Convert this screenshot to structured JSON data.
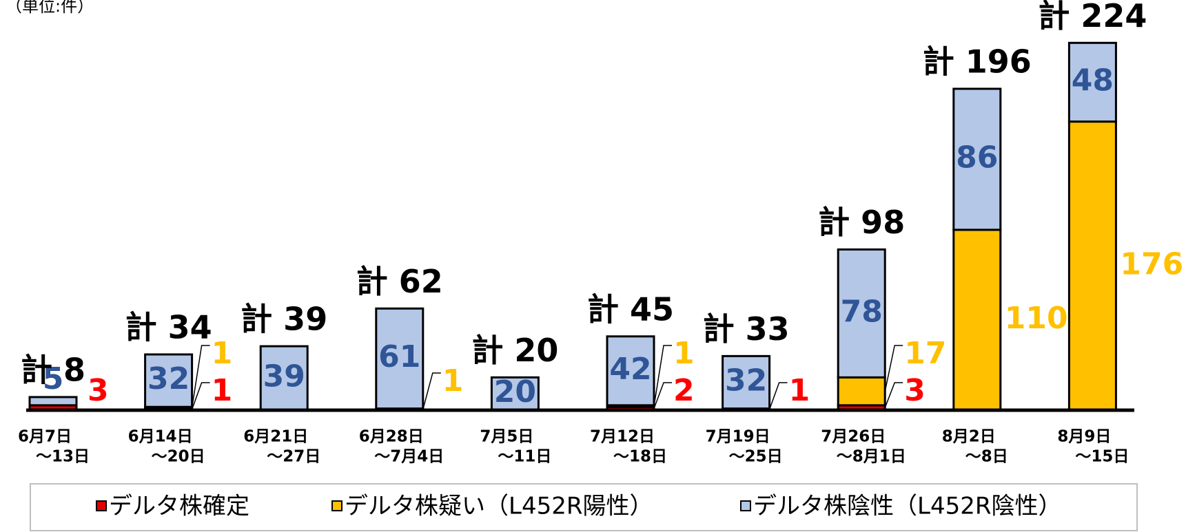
{
  "chart_data": {
    "type": "stacked_bar",
    "unit_label": "（単位:件）",
    "categories": [
      [
        "6月7日",
        "〜13日"
      ],
      [
        "6月14日",
        "〜20日"
      ],
      [
        "6月21日",
        "〜27日"
      ],
      [
        "6月28日",
        "〜7月4日"
      ],
      [
        "7月5日",
        "〜11日"
      ],
      [
        "7月12日",
        "〜18日"
      ],
      [
        "7月19日",
        "〜25日"
      ],
      [
        "7月26日",
        "〜8月1日"
      ],
      [
        "8月2日",
        "〜8日"
      ],
      [
        "8月9日",
        "〜15日"
      ]
    ],
    "series": [
      {
        "name": "デルタ株確定",
        "color": "#e00000",
        "label_color": "#ff0000",
        "values": [
          3,
          1,
          0,
          0,
          0,
          2,
          1,
          3,
          0,
          0
        ]
      },
      {
        "name": "デルタ株疑い（L452R陽性）",
        "color": "#ffc000",
        "label_color": "#ffc000",
        "values": [
          0,
          1,
          0,
          1,
          0,
          1,
          0,
          17,
          110,
          176
        ]
      },
      {
        "name": "デルタ株陰性（L452R陰性）",
        "color": "#b4c7e7",
        "label_color": "#2f5597",
        "values": [
          5,
          32,
          39,
          61,
          20,
          42,
          32,
          78,
          86,
          48
        ]
      }
    ],
    "totals": [
      8,
      34,
      39,
      62,
      20,
      45,
      33,
      98,
      196,
      224
    ],
    "total_labels": [
      "計 8",
      "計 34",
      "計 39",
      "計 62",
      "計 20",
      "計 45",
      "計 33",
      "計 98",
      "計 196",
      "計 224"
    ],
    "ylim": [
      0,
      230
    ]
  }
}
